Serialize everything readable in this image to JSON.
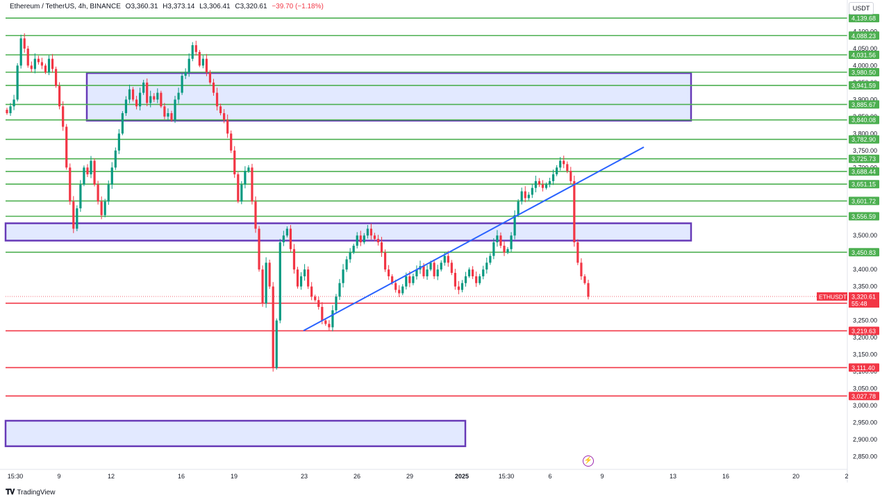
{
  "header": {
    "symbol": "Ethereum / TetherUS, 4h, BINANCE",
    "open": "O3,360.31",
    "high": "H3,373.14",
    "low": "L3,306.41",
    "close": "C3,320.61",
    "change": "−39.70 (−1.18%)"
  },
  "currency": "USDT",
  "branding": "TradingView",
  "colors": {
    "up": "#089981",
    "down": "#f23645",
    "resistance": "#4caf50",
    "support": "#f23645",
    "zone_fill": "#dbe3ff",
    "zone_border": "#673ab7",
    "trendline": "#2962ff"
  },
  "chart_data": {
    "type": "candlestick",
    "pair": "ETHUSDT",
    "timeframe": "4h",
    "ylim": [
      2830,
      4160
    ],
    "x_ticks": [
      "15:30",
      "9",
      "12",
      "16",
      "19",
      "23",
      "26",
      "29",
      "2025",
      "15:30",
      "6",
      "9",
      "13",
      "16",
      "20",
      "2"
    ],
    "y_ticks": [
      "4,100.00",
      "4,050.00",
      "4,000.00",
      "3,950.00",
      "3,900.00",
      "3,850.00",
      "3,800.00",
      "3,750.00",
      "3,700.00",
      "3,500.00",
      "3,400.00",
      "3,350.00",
      "3,250.00",
      "3,200.00",
      "3,150.00",
      "3,100.00",
      "3,050.00",
      "3,000.00",
      "2,950.00",
      "2,900.00",
      "2,850.00"
    ],
    "resistance_levels": [
      "4,139.68",
      "4,088.23",
      "4,031.56",
      "3,980.50",
      "3,941.59",
      "3,885.67",
      "3,840.08",
      "3,782.90",
      "3,725.73",
      "3,688.44",
      "3,651.15",
      "3,601.72",
      "3,556.59",
      "3,450.83"
    ],
    "support_levels": [
      "3,300.79",
      "3,219.63",
      "3,111.40",
      "3,027.78"
    ],
    "last_price": {
      "label": "ETHUSDT",
      "price": "3,320.61",
      "countdown": "55:48"
    },
    "zones": [
      {
        "top": 3978,
        "bottom": 3838
      },
      {
        "top": 3536,
        "bottom": 3485
      },
      {
        "top": 2955,
        "bottom": 2880
      }
    ],
    "trendline": {
      "from": {
        "x": "Dec 23",
        "y": 3220
      },
      "to": {
        "x": "Jan 11",
        "y": 3760
      }
    },
    "close_path": [
      3860,
      3880,
      3900,
      4000,
      4080,
      4050,
      4000,
      3990,
      4020,
      4010,
      4000,
      3980,
      4020,
      3990,
      3940,
      3880,
      3820,
      3700,
      3600,
      3520,
      3580,
      3650,
      3700,
      3680,
      3720,
      3650,
      3600,
      3560,
      3600,
      3650,
      3700,
      3750,
      3800,
      3860,
      3900,
      3930,
      3900,
      3880,
      3920,
      3950,
      3890,
      3910,
      3900,
      3920,
      3880,
      3850,
      3860,
      3840,
      3900,
      3920,
      3970,
      3980,
      4020,
      4060,
      4040,
      4000,
      4020,
      3980,
      3950,
      3920,
      3880,
      3860,
      3840,
      3800,
      3750,
      3680,
      3600,
      3650,
      3690,
      3700,
      3600,
      3520,
      3400,
      3300,
      3420,
      3350,
      3110,
      3250,
      3480,
      3500,
      3520,
      3460,
      3400,
      3350,
      3380,
      3400,
      3350,
      3320,
      3310,
      3290,
      3250,
      3240,
      3230,
      3280,
      3320,
      3360,
      3400,
      3430,
      3450,
      3470,
      3500,
      3480,
      3500,
      3520,
      3500,
      3490,
      3480,
      3450,
      3400,
      3380,
      3360,
      3340,
      3330,
      3350,
      3380,
      3360,
      3380,
      3400,
      3410,
      3380,
      3400,
      3420,
      3380,
      3400,
      3420,
      3440,
      3420,
      3390,
      3350,
      3340,
      3360,
      3380,
      3400,
      3380,
      3360,
      3380,
      3400,
      3420,
      3440,
      3480,
      3500,
      3470,
      3450,
      3460,
      3500,
      3560,
      3600,
      3630,
      3610,
      3620,
      3640,
      3660,
      3650,
      3640,
      3650,
      3660,
      3680,
      3700,
      3720,
      3710,
      3690,
      3660,
      3480,
      3420,
      3380,
      3360,
      3320
    ]
  }
}
